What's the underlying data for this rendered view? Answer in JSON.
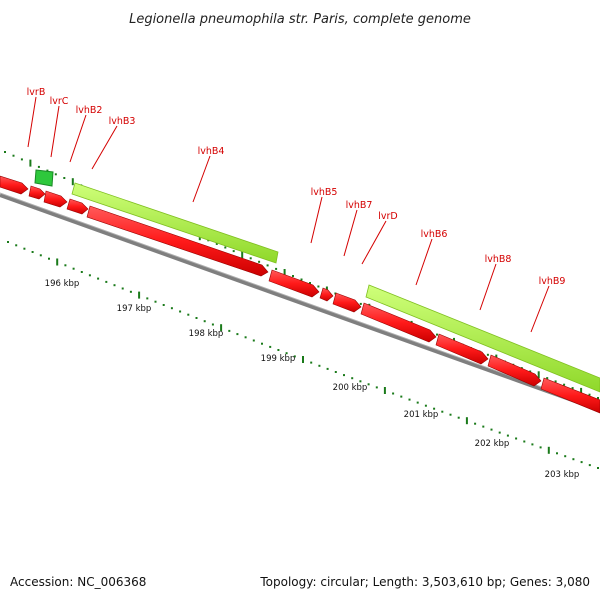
{
  "title": "Legionella pneumophila str. Paris, complete genome",
  "accession": "Accession: NC_006368",
  "summary": "Topology: circular; Length: 3,503,610 bp; Genes: 3,080",
  "gene_labels": [
    "lvrB",
    "lvrC",
    "lvhB2",
    "lvhB3",
    "lvhB4",
    "lvhB5",
    "lvhB7",
    "lvrD",
    "lvhB6",
    "lvhB8",
    "lvhB9"
  ],
  "kbp_labels": [
    "196 kbp",
    "197 kbp",
    "198 kbp",
    "199 kbp",
    "200 kbp",
    "201 kbp",
    "202 kbp",
    "203 kbp"
  ],
  "colors": {
    "gene_forward": "#ff1a1a",
    "gene_highlight": "#a8f03c",
    "small_feature": "#2ec83c",
    "backbone": "#7f7f7f",
    "tick": "#1a7a1a",
    "label": "#d40000"
  }
}
